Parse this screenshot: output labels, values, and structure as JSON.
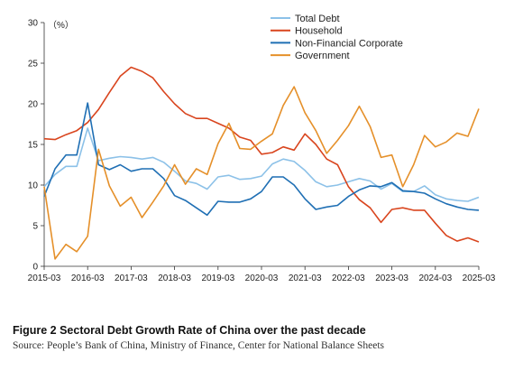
{
  "caption": "Figure 2 Sectoral Debt Growth Rate of China over the past decade",
  "source": "Source: People’s Bank of China, Ministry of Finance, Center for National Balance Sheets",
  "chart_data": {
    "type": "line",
    "y_unit_label": "（%）",
    "ylim": [
      0,
      30
    ],
    "yticks": [
      "0",
      "5",
      "10",
      "15",
      "20",
      "25",
      "30"
    ],
    "xlim": [
      "2015-03",
      "2025-03"
    ],
    "xticks": [
      "2015-03",
      "2016-03",
      "2017-03",
      "2018-03",
      "2019-03",
      "2020-03",
      "2021-03",
      "2022-03",
      "2023-03",
      "2024-03",
      "2025-03"
    ],
    "x": [
      "2015-03",
      "2015-06",
      "2015-09",
      "2015-12",
      "2016-03",
      "2016-06",
      "2016-09",
      "2016-12",
      "2017-03",
      "2017-06",
      "2017-09",
      "2017-12",
      "2018-03",
      "2018-06",
      "2018-09",
      "2018-12",
      "2019-03",
      "2019-06",
      "2019-09",
      "2019-12",
      "2020-03",
      "2020-06",
      "2020-09",
      "2020-12",
      "2021-03",
      "2021-06",
      "2021-09",
      "2021-12",
      "2022-03",
      "2022-06",
      "2022-09",
      "2022-12",
      "2023-03",
      "2023-06",
      "2023-09",
      "2023-12",
      "2024-03",
      "2024-06",
      "2024-09",
      "2024-12",
      "2025-03"
    ],
    "legend_position": "top-right",
    "grid": false,
    "series": [
      {
        "name": "Total Debt",
        "color": "#8cc1e8",
        "values": [
          9.8,
          11.3,
          12.3,
          12.3,
          17.0,
          13.0,
          13.3,
          13.5,
          13.4,
          13.2,
          13.4,
          12.8,
          11.7,
          10.5,
          10.2,
          9.5,
          11.0,
          11.2,
          10.7,
          10.8,
          11.1,
          12.6,
          13.2,
          12.9,
          11.8,
          10.4,
          9.8,
          10.0,
          10.4,
          10.8,
          10.5,
          9.5,
          10.2,
          9.2,
          9.2,
          9.9,
          8.8,
          8.3,
          8.1,
          8.0,
          8.5
        ]
      },
      {
        "name": "Household",
        "color": "#d9451e",
        "values": [
          15.7,
          15.6,
          16.2,
          16.7,
          17.7,
          19.3,
          21.4,
          23.4,
          24.5,
          24.0,
          23.2,
          21.5,
          20.0,
          18.8,
          18.2,
          18.2,
          17.6,
          17.0,
          15.9,
          15.5,
          13.8,
          14.0,
          14.7,
          14.3,
          16.3,
          15.0,
          13.2,
          12.5,
          9.8,
          8.2,
          7.2,
          5.4,
          7.0,
          7.2,
          6.9,
          6.9,
          5.3,
          3.8,
          3.1,
          3.5,
          3.0
        ]
      },
      {
        "name": "Non-Financial Corporate",
        "color": "#1f6fb4",
        "values": [
          8.6,
          12.0,
          13.7,
          13.7,
          20.1,
          12.5,
          11.9,
          12.5,
          11.7,
          12.0,
          12.0,
          10.8,
          8.7,
          8.1,
          7.2,
          6.3,
          8.0,
          7.9,
          7.9,
          8.3,
          9.2,
          11.0,
          11.0,
          10.0,
          8.3,
          7.0,
          7.3,
          7.5,
          8.6,
          9.4,
          9.9,
          9.8,
          10.3,
          9.3,
          9.2,
          9.0,
          8.3,
          7.7,
          7.3,
          7.0,
          6.9
        ]
      },
      {
        "name": "Government",
        "color": "#e5902a",
        "values": [
          9.8,
          0.9,
          2.7,
          1.8,
          3.7,
          14.4,
          9.9,
          7.4,
          8.5,
          6.0,
          7.9,
          9.9,
          12.5,
          10.1,
          12.0,
          11.3,
          15.1,
          17.6,
          14.5,
          14.4,
          15.4,
          16.3,
          19.8,
          22.1,
          18.9,
          16.7,
          13.9,
          15.5,
          17.3,
          19.7,
          17.2,
          13.4,
          13.7,
          9.8,
          12.5,
          16.1,
          14.7,
          15.3,
          16.4,
          16.0,
          19.4
        ]
      }
    ]
  }
}
